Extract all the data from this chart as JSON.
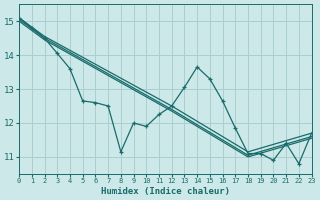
{
  "xlabel": "Humidex (Indice chaleur)",
  "background_color": "#cce8e8",
  "grid_color": "#aacfcf",
  "line_color": "#1a6b6b",
  "xlim": [
    0,
    23
  ],
  "ylim": [
    10.5,
    15.5
  ],
  "yticks": [
    11,
    12,
    13,
    14,
    15
  ],
  "xticks": [
    0,
    1,
    2,
    3,
    4,
    5,
    6,
    7,
    8,
    9,
    10,
    11,
    12,
    13,
    14,
    15,
    16,
    17,
    18,
    19,
    20,
    21,
    22,
    23
  ],
  "zigzag": [
    15.1,
    14.8,
    14.5,
    14.05,
    13.6,
    12.65,
    12.6,
    12.5,
    11.15,
    12.0,
    11.9,
    12.25,
    12.5,
    13.05,
    13.65,
    13.3,
    12.65,
    11.85,
    11.1,
    11.1,
    10.9,
    11.4,
    10.8,
    11.7
  ],
  "straight1_x": [
    0,
    2,
    12,
    18,
    23
  ],
  "straight1_y": [
    15.1,
    14.55,
    12.5,
    11.15,
    11.7
  ],
  "straight2_x": [
    0,
    2,
    12,
    18,
    23
  ],
  "straight2_y": [
    15.05,
    14.5,
    12.4,
    11.05,
    11.6
  ],
  "straight3_x": [
    0,
    2,
    12,
    18,
    23
  ],
  "straight3_y": [
    15.0,
    14.45,
    12.35,
    11.0,
    11.55
  ]
}
